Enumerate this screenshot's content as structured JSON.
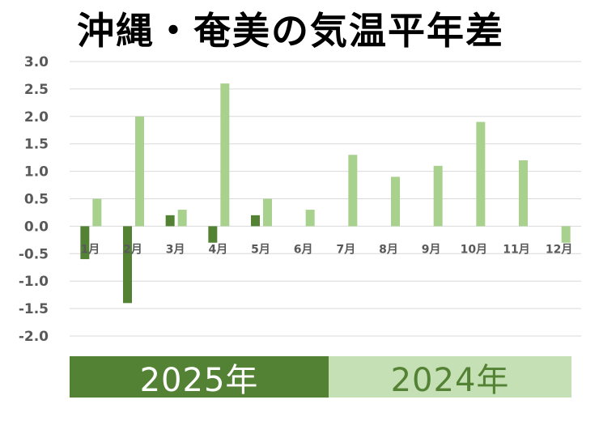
{
  "chart_data": {
    "type": "bar",
    "title": "沖縄・奄美の気温平年差",
    "categories": [
      "1月",
      "2月",
      "3月",
      "4月",
      "5月",
      "6月",
      "7月",
      "8月",
      "9月",
      "10月",
      "11月",
      "12月"
    ],
    "series": [
      {
        "name": "2025年",
        "color": "#548235",
        "values": [
          -0.6,
          -1.4,
          0.2,
          -0.3,
          0.2,
          null,
          null,
          null,
          null,
          null,
          null,
          null
        ]
      },
      {
        "name": "2024年",
        "color": "#a9d18e",
        "values": [
          0.5,
          2.0,
          0.3,
          2.6,
          0.5,
          0.3,
          1.3,
          0.9,
          1.1,
          1.9,
          1.2,
          -0.3
        ]
      }
    ],
    "ylim": [
      -2.0,
      3.0
    ],
    "yticks": [
      "3.0",
      "2.5",
      "2.0",
      "1.5",
      "1.0",
      "0.5",
      "0.0",
      "-0.5",
      "-1.0",
      "-1.5",
      "-2.0"
    ],
    "grid": true,
    "legend": {
      "placement": "bottom",
      "entries": [
        {
          "label": "2025年",
          "fill": "#548235",
          "text_color": "#ffffff"
        },
        {
          "label": "2024年",
          "fill": "#c5e0b4",
          "text_color": "#548235"
        }
      ]
    }
  }
}
